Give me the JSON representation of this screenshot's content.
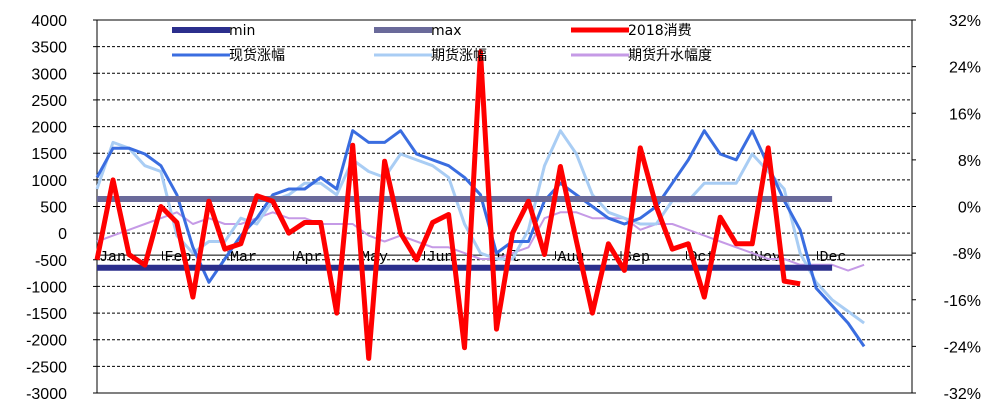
{
  "chart_data": {
    "type": "line",
    "months": [
      "Jan",
      "Feb",
      "Mar",
      "Apr",
      "May",
      "Jun",
      "Jul",
      "Aug",
      "Sep",
      "Oct",
      "Nov",
      "Dec"
    ],
    "y_left": {
      "ylim": [
        -3000,
        4000
      ],
      "ticks": [
        4000,
        3500,
        3000,
        2500,
        2000,
        1500,
        1000,
        500,
        0,
        -500,
        -1000,
        -1500,
        -2000,
        -2500,
        -3000
      ]
    },
    "y_right": {
      "ylim": [
        -32,
        32
      ],
      "ticks": [
        "32%",
        "24%",
        "16%",
        "8%",
        "0%",
        "-8%",
        "-16%",
        "-24%",
        "-32%"
      ]
    },
    "x_range": [
      1,
      52
    ],
    "series": [
      {
        "name": "min",
        "axis": "left",
        "color": "#2b2e8c",
        "width": 6,
        "x": [
          1,
          47
        ],
        "values": [
          -650,
          -650
        ]
      },
      {
        "name": "max",
        "axis": "left",
        "color": "#6a6a9a",
        "width": 6,
        "x": [
          1,
          47
        ],
        "values": [
          640,
          640
        ]
      },
      {
        "name": "2018消费",
        "axis": "left",
        "color": "#ff0000",
        "width": 5,
        "x": [
          1,
          2,
          3,
          4,
          5,
          6,
          7,
          8,
          9,
          10,
          11,
          12,
          13,
          14,
          15,
          16,
          17,
          18,
          19,
          20,
          21,
          22,
          23,
          24,
          25,
          26,
          27,
          28,
          29,
          30,
          31,
          32,
          33,
          34,
          35,
          36,
          37,
          38,
          39,
          40,
          41,
          42,
          43,
          44,
          45
        ],
        "values": [
          -500,
          1000,
          -400,
          -600,
          500,
          200,
          -1200,
          600,
          -300,
          -200,
          700,
          600,
          0,
          200,
          200,
          -1500,
          1650,
          -2350,
          1350,
          0,
          -500,
          200,
          350,
          -2150,
          3400,
          -1800,
          0,
          600,
          -400,
          1250,
          -150,
          -1500,
          -200,
          -700,
          1600,
          500,
          -300,
          -200,
          -1200,
          300,
          -200,
          -200,
          1600,
          -900,
          -950
        ]
      },
      {
        "name": "现货涨幅",
        "axis": "right",
        "color": "#3a6de0",
        "width": 3,
        "x": [
          1,
          2,
          3,
          4,
          5,
          6,
          7,
          8,
          9,
          10,
          11,
          12,
          13,
          14,
          15,
          16,
          17,
          18,
          19,
          20,
          21,
          22,
          23,
          24,
          25,
          26,
          27,
          28,
          29,
          30,
          31,
          32,
          33,
          34,
          35,
          36,
          37,
          38,
          39,
          40,
          41,
          42,
          43,
          44,
          45,
          46,
          47,
          48,
          49
        ],
        "values": [
          5,
          10,
          10,
          9,
          7,
          2,
          -7,
          -13,
          -9,
          -5,
          -2,
          2,
          3,
          3,
          5,
          3,
          13,
          11,
          11,
          13,
          9,
          8,
          7,
          5,
          2,
          -8,
          -6,
          -6,
          1,
          4,
          2,
          0,
          -2,
          -3,
          -2,
          0,
          4,
          8,
          13,
          9,
          8,
          13,
          7,
          1,
          -4,
          -14,
          -17,
          -20,
          -24
        ]
      },
      {
        "name": "期货涨幅",
        "axis": "right",
        "color": "#a9cdf4",
        "width": 3,
        "x": [
          1,
          2,
          3,
          4,
          5,
          6,
          7,
          8,
          9,
          10,
          11,
          12,
          13,
          14,
          15,
          16,
          17,
          18,
          19,
          20,
          21,
          22,
          23,
          24,
          25,
          26,
          27,
          28,
          29,
          30,
          31,
          32,
          33,
          34,
          35,
          36,
          37,
          38,
          39,
          40,
          41,
          42,
          43,
          44,
          45,
          46,
          47,
          48,
          49
        ],
        "values": [
          3,
          11,
          10,
          7,
          6,
          -5,
          -8,
          -6,
          -6,
          -2,
          -3,
          1,
          2,
          4,
          4,
          2,
          8,
          6,
          5,
          9,
          8,
          7,
          5,
          -3,
          -8,
          -9,
          -9,
          -4,
          7,
          13,
          9,
          2,
          -1,
          -2,
          -3,
          -3,
          1,
          1,
          4,
          4,
          4,
          9,
          6,
          3,
          -8,
          -13,
          -16,
          -18,
          -20
        ]
      },
      {
        "name": "期货升水幅度",
        "axis": "right",
        "color": "#c59ae6",
        "width": 2,
        "x": [
          1,
          2,
          3,
          4,
          5,
          6,
          7,
          8,
          9,
          10,
          11,
          12,
          13,
          14,
          15,
          16,
          17,
          18,
          19,
          20,
          21,
          22,
          23,
          24,
          25,
          26,
          27,
          28,
          29,
          30,
          31,
          32,
          33,
          34,
          35,
          36,
          37,
          38,
          39,
          40,
          41,
          42,
          43,
          44,
          45,
          46,
          47,
          48,
          49
        ],
        "values": [
          -6,
          -5,
          -4,
          -3,
          -2,
          -1,
          -3,
          -2,
          -3,
          -3,
          -2,
          -1,
          -2,
          -2,
          -3,
          -3,
          -3,
          -5,
          -6,
          -5,
          -6,
          -7,
          -7,
          -8,
          -9,
          -9,
          -8,
          -7,
          -2,
          -1,
          -1,
          -2,
          -2,
          -2,
          -4,
          -3,
          -3,
          -4,
          -5,
          -6,
          -7,
          -8,
          -9,
          -9,
          -10,
          -10,
          -10,
          -11,
          -10
        ]
      }
    ],
    "legend": {
      "position": "top",
      "columns": 3
    }
  }
}
